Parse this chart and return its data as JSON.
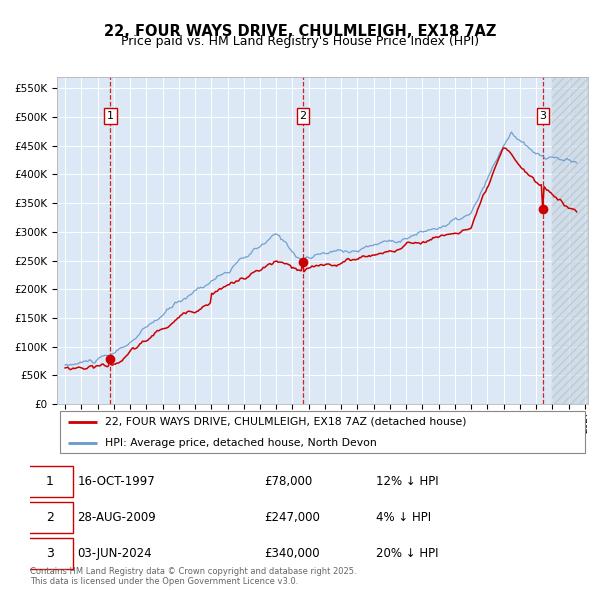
{
  "title": "22, FOUR WAYS DRIVE, CHULMLEIGH, EX18 7AZ",
  "subtitle": "Price paid vs. HM Land Registry's House Price Index (HPI)",
  "legend_line1": "22, FOUR WAYS DRIVE, CHULMLEIGH, EX18 7AZ (detached house)",
  "legend_line2": "HPI: Average price, detached house, North Devon",
  "transactions": [
    {
      "num": 1,
      "date": "16-OCT-1997",
      "year": 1997.79,
      "price": 78000,
      "pct": "12%"
    },
    {
      "num": 2,
      "date": "28-AUG-2009",
      "year": 2009.65,
      "price": 247000,
      "pct": "4%"
    },
    {
      "num": 3,
      "date": "03-JUN-2024",
      "year": 2024.42,
      "price": 340000,
      "pct": "20%"
    }
  ],
  "copyright": "Contains HM Land Registry data © Crown copyright and database right 2025.\nThis data is licensed under the Open Government Licence v3.0.",
  "ylim": [
    0,
    570000
  ],
  "yticks": [
    0,
    50000,
    100000,
    150000,
    200000,
    250000,
    300000,
    350000,
    400000,
    450000,
    500000,
    550000
  ],
  "xlim_start": 1994.5,
  "xlim_end": 2027.2,
  "hatch_start": 2025.0,
  "line_color_red": "#cc0000",
  "line_color_blue": "#6699cc",
  "bg_color": "#dce8f5",
  "grid_color": "#ffffff",
  "hatch_color": "#c8d4e4"
}
